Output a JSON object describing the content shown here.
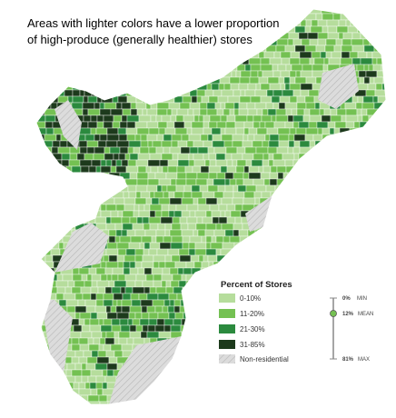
{
  "header": {
    "title_lines": [
      "Areas with lighter colors have a lower proportion",
      "of high-produce (generally healthier) stores"
    ]
  },
  "legend": {
    "title": "Percent of Stores",
    "items": [
      {
        "label": "0-10%",
        "color": "#b6dd9c"
      },
      {
        "label": "11-20%",
        "color": "#74c152"
      },
      {
        "label": "21-30%",
        "color": "#2b8a3e"
      },
      {
        "label": "31-85%",
        "color": "#1d3a1c"
      },
      {
        "label": "Non-residential",
        "color": "#dcdcdc"
      }
    ]
  },
  "scale": {
    "min": {
      "value": "0%",
      "label": "MIN"
    },
    "mean": {
      "value": "12%",
      "label": "MEAN"
    },
    "max": {
      "value": "81%",
      "label": "MAX"
    }
  }
}
